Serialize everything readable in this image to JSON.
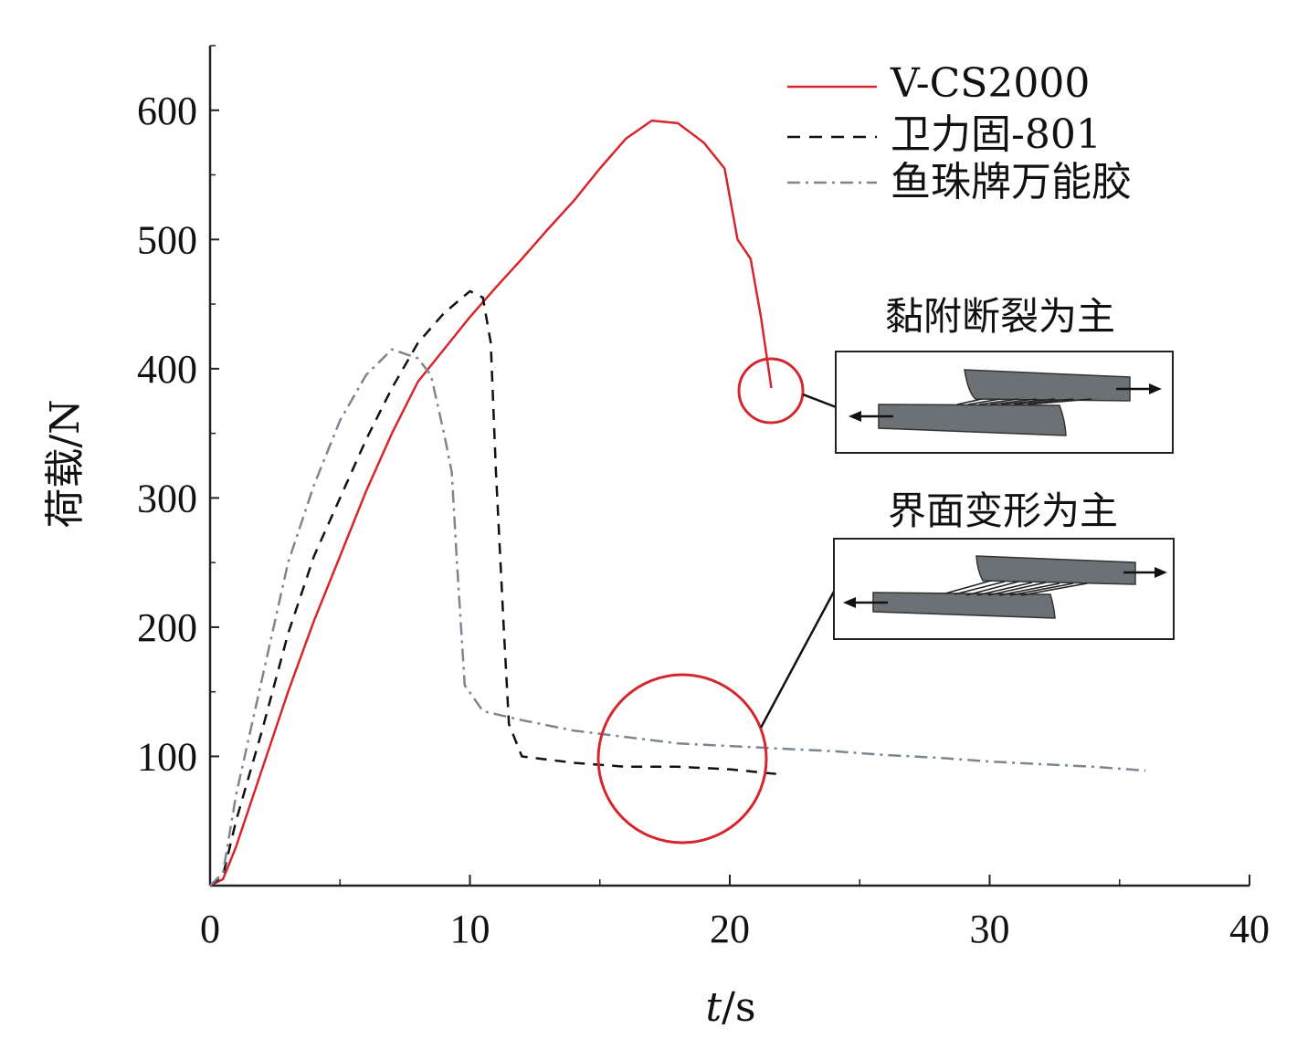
{
  "chart_data": {
    "type": "line",
    "xlabel_var": "t",
    "xlabel_unit": "/s",
    "ylabel": "荷载/N",
    "xlim": [
      0,
      40
    ],
    "ylim": [
      0,
      650
    ],
    "xticks": [
      0,
      10,
      20,
      30,
      40
    ],
    "yticks": [
      100,
      200,
      300,
      400,
      500,
      600
    ],
    "legend_position": "top-right",
    "series": [
      {
        "name": "V-CS2000",
        "color": "#d7262b",
        "style": "solid",
        "points": [
          [
            0,
            0
          ],
          [
            0.5,
            5
          ],
          [
            1,
            30
          ],
          [
            2,
            90
          ],
          [
            3,
            150
          ],
          [
            4,
            205
          ],
          [
            5,
            255
          ],
          [
            6,
            305
          ],
          [
            7,
            350
          ],
          [
            8,
            390
          ],
          [
            9,
            415
          ],
          [
            10,
            440
          ],
          [
            11,
            463
          ],
          [
            12,
            485
          ],
          [
            13,
            508
          ],
          [
            14,
            530
          ],
          [
            15,
            555
          ],
          [
            16,
            578
          ],
          [
            17,
            592
          ],
          [
            18,
            590
          ],
          [
            19,
            575
          ],
          [
            19.8,
            555
          ],
          [
            20.3,
            500
          ],
          [
            20.8,
            485
          ],
          [
            21.2,
            440
          ],
          [
            21.6,
            385
          ]
        ]
      },
      {
        "name": "卫力固-801",
        "color": "#111111",
        "style": "dashed",
        "points": [
          [
            0,
            0
          ],
          [
            0.5,
            8
          ],
          [
            1,
            50
          ],
          [
            2,
            120
          ],
          [
            3,
            195
          ],
          [
            4,
            255
          ],
          [
            5,
            300
          ],
          [
            6,
            345
          ],
          [
            7,
            385
          ],
          [
            8,
            420
          ],
          [
            9,
            443
          ],
          [
            10,
            460
          ],
          [
            10.5,
            455
          ],
          [
            10.8,
            420
          ],
          [
            11.0,
            320
          ],
          [
            11.3,
            200
          ],
          [
            11.5,
            125
          ],
          [
            12,
            100
          ],
          [
            14,
            95
          ],
          [
            16,
            92
          ],
          [
            18,
            92
          ],
          [
            20,
            90
          ],
          [
            22,
            86
          ]
        ]
      },
      {
        "name": "鱼珠牌万能胶",
        "color": "#7d8690",
        "style": "dashdot",
        "points": [
          [
            0,
            0
          ],
          [
            0.5,
            10
          ],
          [
            1,
            70
          ],
          [
            2,
            160
          ],
          [
            3,
            250
          ],
          [
            4,
            310
          ],
          [
            5,
            360
          ],
          [
            6,
            395
          ],
          [
            7,
            415
          ],
          [
            8,
            408
          ],
          [
            8.5,
            395
          ],
          [
            9,
            350
          ],
          [
            9.3,
            320
          ],
          [
            9.5,
            250
          ],
          [
            9.8,
            155
          ],
          [
            10.5,
            135
          ],
          [
            12,
            128
          ],
          [
            14,
            120
          ],
          [
            16,
            115
          ],
          [
            18,
            110
          ],
          [
            20,
            108
          ],
          [
            22,
            106
          ],
          [
            24,
            104
          ],
          [
            26,
            101
          ],
          [
            28,
            99
          ],
          [
            30,
            96
          ],
          [
            32,
            94
          ],
          [
            34,
            92
          ],
          [
            36,
            89
          ]
        ]
      }
    ]
  },
  "annotations": {
    "label_top": "黏附断裂为主",
    "label_bottom": "界面变形为主"
  },
  "colors": {
    "highlight_circle": "#d7262b",
    "inset_bar": "#6c7176"
  }
}
